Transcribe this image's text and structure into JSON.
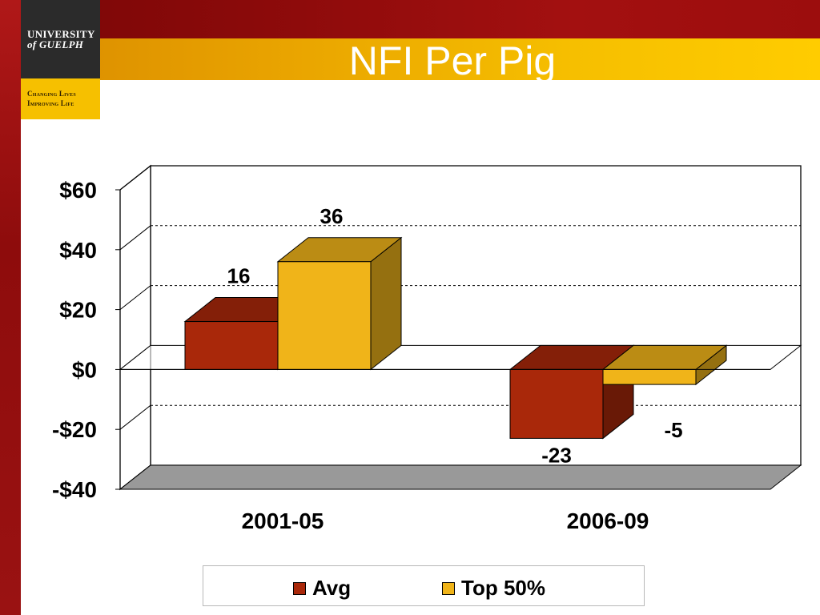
{
  "slide": {
    "title": "NFI Per Pig",
    "logo_line1": "UNIVERSITY",
    "logo_line2": "of GUELPH",
    "tagline_line1": "Changing Lives",
    "tagline_line2": "Improving Life"
  },
  "colors": {
    "avg": "#a9280a",
    "top": "#f0b419",
    "floor": "#999999"
  },
  "chart_data": {
    "type": "bar",
    "title": "",
    "xlabel": "",
    "ylabel": "",
    "categories": [
      "2001-05",
      "2006-09"
    ],
    "series": [
      {
        "name": "Avg",
        "values": [
          16,
          -23
        ],
        "labels": [
          "16",
          "-23"
        ]
      },
      {
        "name": "Top 50%",
        "values": [
          36,
          -5
        ],
        "labels": [
          "36",
          "-5"
        ]
      }
    ],
    "ylim": [
      -40,
      60
    ],
    "yticks": [
      60,
      40,
      20,
      0,
      -20,
      -40
    ],
    "ytick_labels": [
      "$60",
      "$40",
      "$20",
      "$0",
      "-$20",
      "-$40"
    ],
    "grid": "dashed horizontal",
    "legend": "bottom",
    "style": "3d"
  }
}
